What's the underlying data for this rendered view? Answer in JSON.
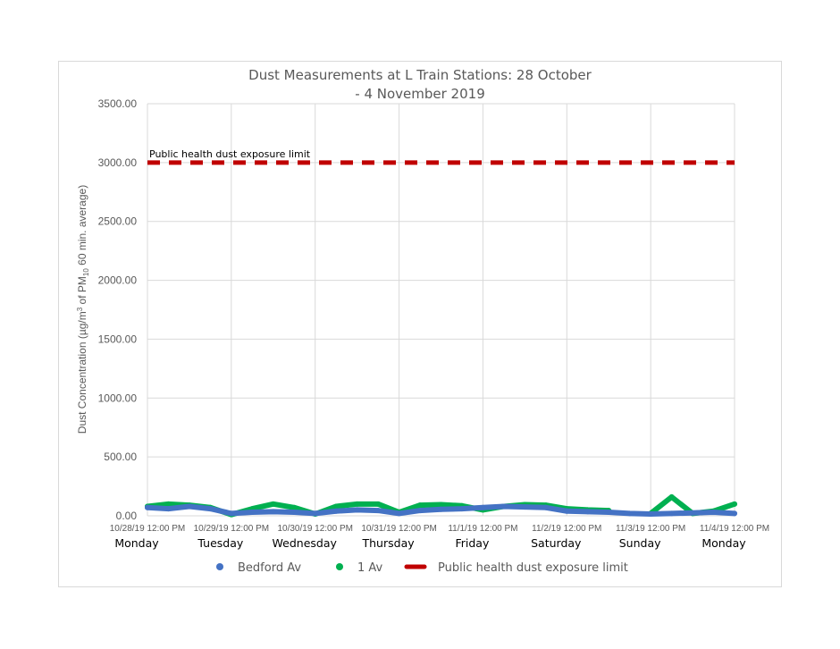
{
  "chart_data": {
    "type": "line",
    "title": "Dust Measurements at L Train Stations: 28 October - 4 November 2019",
    "title_lines": [
      "Dust Measurements at L Train Stations: 28 October",
      "- 4 November 2019"
    ],
    "ylabel": "Dust Concentration (µg/m³ of PM₁₀ 60 min. average)",
    "ylabel_parts": {
      "pre": "Dust Concentration (µg/m",
      "sup": "3",
      "mid": " of PM",
      "sub": "10",
      "post": " 60 min. average)"
    },
    "ylim": [
      0,
      3500
    ],
    "yticks": [
      "0.00",
      "500.00",
      "1000.00",
      "1500.00",
      "2000.00",
      "2500.00",
      "3000.00",
      "3500.00"
    ],
    "xlim": [
      "2019-10-28T12:00",
      "2019-11-04T12:00"
    ],
    "xticks": [
      "10/28/19 12:00 PM",
      "10/29/19 12:00 PM",
      "10/30/19 12:00 PM",
      "10/31/19 12:00 PM",
      "11/1/19 12:00 PM",
      "11/2/19 12:00 PM",
      "11/3/19 12:00 PM",
      "11/4/19 12:00 PM"
    ],
    "day_labels": [
      "Monday",
      "Tuesday",
      "Wednesday",
      "Thursday",
      "Friday",
      "Saturday",
      "Sunday",
      "Monday"
    ],
    "grid": true,
    "legend_position": "bottom",
    "x": [
      "2019-10-28T12:00",
      "2019-10-28T18:00",
      "2019-10-29T00:00",
      "2019-10-29T06:00",
      "2019-10-29T12:00",
      "2019-10-29T18:00",
      "2019-10-30T00:00",
      "2019-10-30T06:00",
      "2019-10-30T12:00",
      "2019-10-30T18:00",
      "2019-10-31T00:00",
      "2019-10-31T06:00",
      "2019-10-31T12:00",
      "2019-10-31T18:00",
      "2019-11-01T00:00",
      "2019-11-01T06:00",
      "2019-11-01T12:00",
      "2019-11-01T18:00",
      "2019-11-02T00:00",
      "2019-11-02T06:00",
      "2019-11-02T12:00",
      "2019-11-02T18:00",
      "2019-11-03T00:00",
      "2019-11-03T06:00",
      "2019-11-03T12:00",
      "2019-11-03T18:00",
      "2019-11-04T00:00",
      "2019-11-04T06:00",
      "2019-11-04T12:00"
    ],
    "series": [
      {
        "name": "Bedford Av",
        "color": "#4472c4",
        "values": [
          70,
          60,
          80,
          60,
          20,
          30,
          35,
          30,
          20,
          40,
          50,
          45,
          20,
          45,
          55,
          60,
          70,
          80,
          75,
          70,
          40,
          35,
          30,
          20,
          15,
          20,
          25,
          30,
          20
        ]
      },
      {
        "name": "1 Av",
        "color": "#00b050",
        "values": [
          80,
          100,
          90,
          70,
          10,
          60,
          100,
          70,
          15,
          80,
          100,
          100,
          30,
          90,
          95,
          85,
          50,
          80,
          95,
          90,
          60,
          50,
          45,
          null,
          20,
          160,
          20,
          40,
          100
        ]
      },
      {
        "name": "Public health dust exposure limit",
        "color": "#c00000",
        "dashed": true,
        "constant": 3000
      }
    ],
    "annotations": [
      "Public health dust exposure limit"
    ]
  }
}
